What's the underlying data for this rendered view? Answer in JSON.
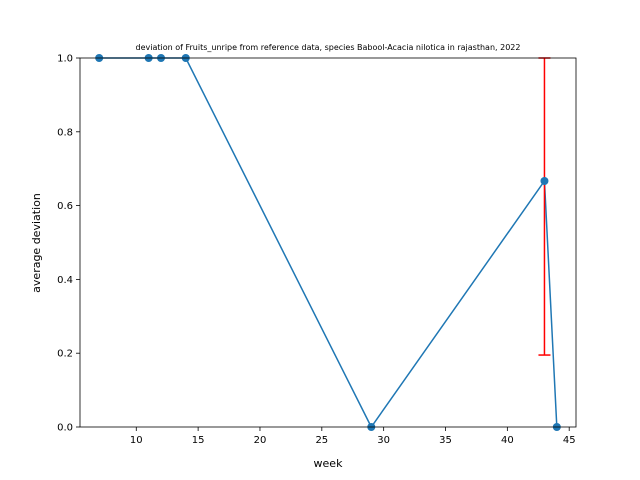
{
  "chart_data": {
    "type": "line",
    "title": "deviation of Fruits_unripe from reference data, species Babool-Acacia nilotica in rajasthan, 2022",
    "xlabel": "week",
    "ylabel": "average deviation",
    "xlim": [
      5.45,
      45.55
    ],
    "ylim": [
      0,
      1
    ],
    "xticks": [
      10,
      15,
      20,
      25,
      30,
      35,
      40,
      45
    ],
    "yticks": [
      0.0,
      0.2,
      0.4,
      0.6,
      0.8,
      1.0
    ],
    "series": [
      {
        "color": "#1f77b4",
        "points": [
          {
            "x": 7,
            "y": 1.0
          },
          {
            "x": 11,
            "y": 1.0
          },
          {
            "x": 12,
            "y": 1.0
          },
          {
            "x": 14,
            "y": 1.0
          },
          {
            "x": 29,
            "y": 0.0
          },
          {
            "x": 43,
            "y": 0.6667
          },
          {
            "x": 44,
            "y": 0.0
          }
        ]
      }
    ],
    "error_bars": [
      {
        "x": 43,
        "low": 0.195,
        "high": 1.0,
        "color": "#ff0000"
      }
    ],
    "grid": false
  }
}
